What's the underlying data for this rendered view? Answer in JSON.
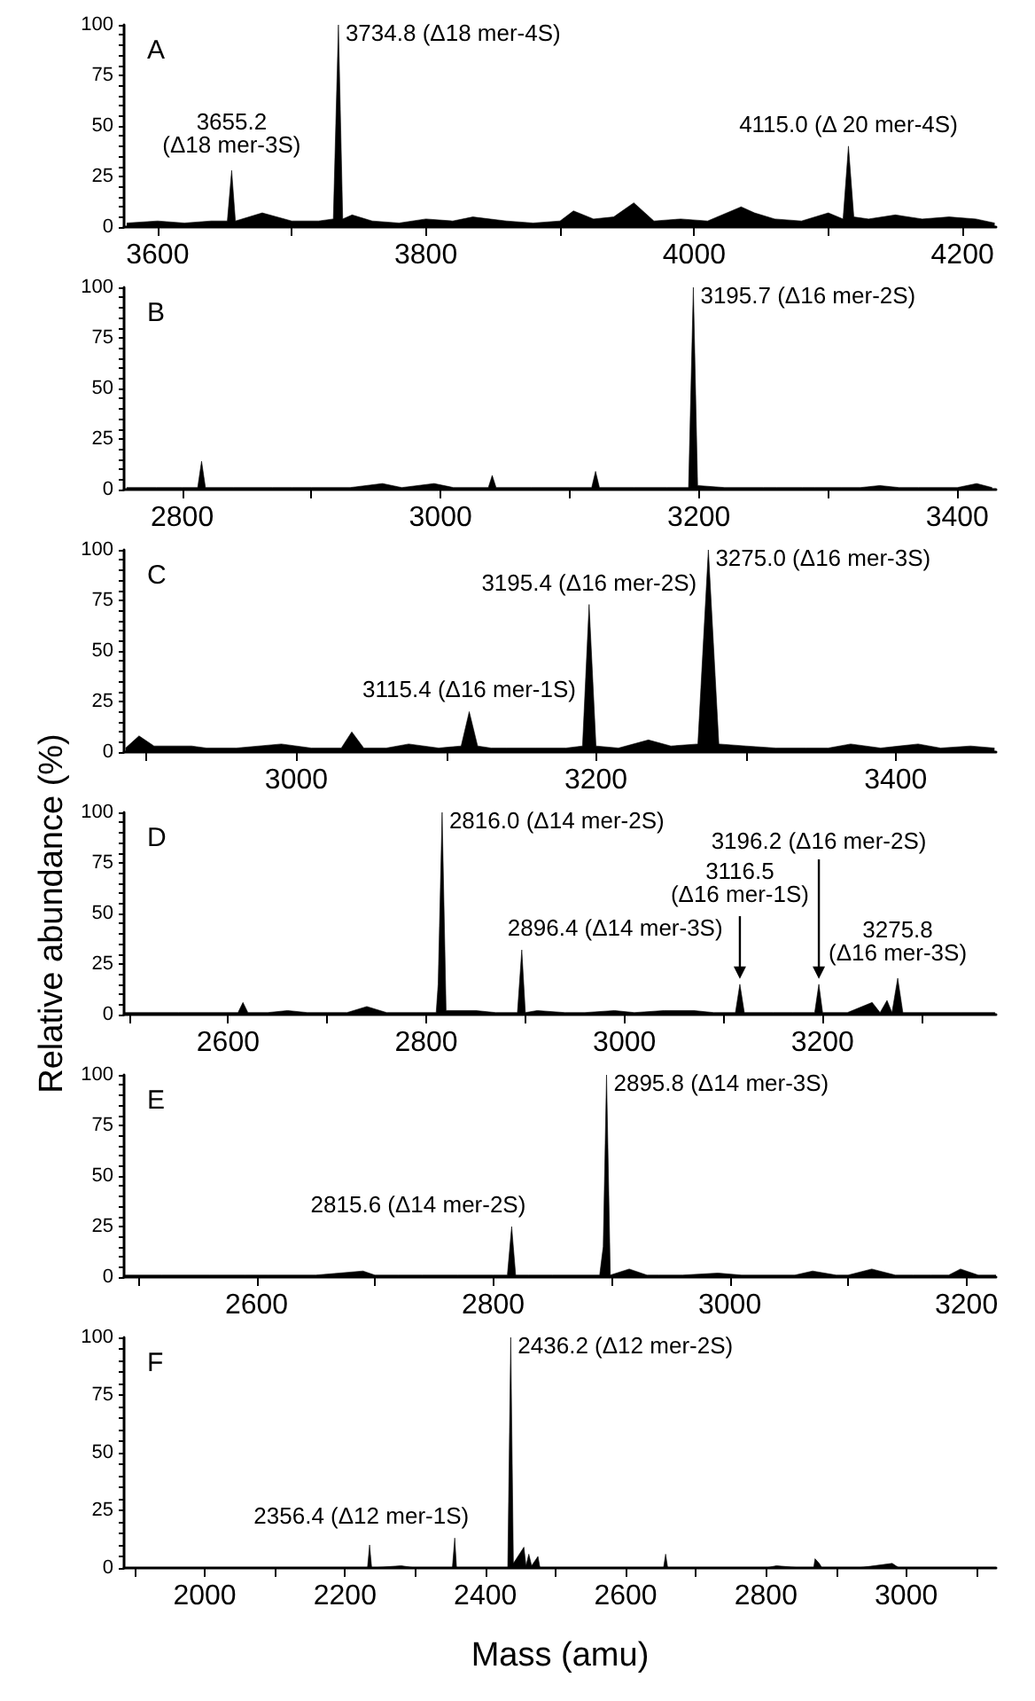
{
  "chart_data": [
    {
      "type": "area",
      "title": "A",
      "color": "#000000",
      "x": [
        3577,
        3600,
        3620,
        3640,
        3652,
        3655.2,
        3658,
        3678,
        3700,
        3720,
        3731,
        3734.8,
        3738,
        3745,
        3760,
        3780,
        3800,
        3820,
        3835,
        3860,
        3880,
        3900,
        3910,
        3925,
        3940,
        3955,
        3970,
        3990,
        4010,
        4035,
        4045,
        4060,
        4080,
        4100,
        4111,
        4115.0,
        4119,
        4130,
        4150,
        4170,
        4190,
        4210,
        4224
      ],
      "values": [
        2,
        3,
        2,
        3,
        3,
        28,
        3,
        7,
        3,
        3,
        4,
        100,
        4,
        6,
        3,
        2,
        4,
        3,
        5,
        3,
        2,
        3,
        8,
        4,
        5,
        12,
        3,
        4,
        3,
        10,
        7,
        4,
        3,
        7,
        4,
        40,
        5,
        4,
        6,
        4,
        5,
        4,
        2
      ],
      "xlim": [
        3575,
        4225
      ],
      "xticks": [
        3600,
        {
          "value": 3700,
          "label": null
        },
        3800,
        {
          "value": 3900,
          "label": null
        },
        4000,
        {
          "value": 4100,
          "label": null
        },
        4200
      ],
      "ylim": [
        0,
        100
      ],
      "yticks": [
        0,
        {
          "value": 5,
          "label": null
        },
        {
          "value": 10,
          "label": null
        },
        {
          "value": 15,
          "label": null
        },
        {
          "value": 20,
          "label": null
        },
        25,
        {
          "value": 30,
          "label": null
        },
        {
          "value": 35,
          "label": null
        },
        {
          "value": 40,
          "label": null
        },
        {
          "value": 45,
          "label": null
        },
        50,
        {
          "value": 55,
          "label": null
        },
        {
          "value": 60,
          "label": null
        },
        {
          "value": 65,
          "label": null
        },
        {
          "value": 70,
          "label": null
        },
        75,
        {
          "value": 80,
          "label": null
        },
        {
          "value": 85,
          "label": null
        },
        {
          "value": 90,
          "label": null
        },
        {
          "value": 95,
          "label": null
        },
        100
      ],
      "annotations": [
        {
          "text": "3734.8 (Δ18 mer-4S)",
          "x": 3734.8,
          "y": 100
        },
        {
          "text": "3655.2\n(Δ18 mer-3S)",
          "x": 3655.2,
          "y": 28
        },
        {
          "text": "4115.0 (Δ 20 mer-4S)",
          "x": 4115.0,
          "y": 40
        }
      ]
    },
    {
      "type": "area",
      "title": "B",
      "color": "#000000",
      "x": [
        2757,
        2780,
        2800,
        2812,
        2815,
        2818,
        2840,
        2870,
        2885,
        2900,
        2930,
        2955,
        2970,
        2995,
        3010,
        3037,
        3040,
        3043,
        3070,
        3100,
        3117,
        3120,
        3123,
        3150,
        3175,
        3192,
        3195.7,
        3199,
        3220,
        3250,
        3260,
        3280,
        3290,
        3310,
        3325,
        3340,
        3355,
        3370,
        3400,
        3415,
        3427
      ],
      "values": [
        1,
        1,
        1,
        1,
        14,
        1,
        1,
        1,
        1,
        1,
        1,
        3,
        1,
        3,
        1,
        1,
        7,
        1,
        1,
        1,
        1,
        9,
        1,
        1,
        1,
        1,
        100,
        2,
        1,
        1,
        1,
        1,
        1,
        1,
        1,
        2,
        1,
        1,
        1,
        3,
        1
      ],
      "xlim": [
        2755,
        3430
      ],
      "xticks": [
        2800,
        {
          "value": 2900,
          "label": null
        },
        3000,
        {
          "value": 3100,
          "label": null
        },
        3200,
        {
          "value": 3300,
          "label": null
        },
        3400
      ],
      "ylim": [
        0,
        100
      ],
      "yticks": [
        0,
        {
          "value": 5,
          "label": null
        },
        {
          "value": 10,
          "label": null
        },
        {
          "value": 15,
          "label": null
        },
        {
          "value": 20,
          "label": null
        },
        25,
        {
          "value": 30,
          "label": null
        },
        {
          "value": 35,
          "label": null
        },
        {
          "value": 40,
          "label": null
        },
        {
          "value": 45,
          "label": null
        },
        50,
        {
          "value": 55,
          "label": null
        },
        {
          "value": 60,
          "label": null
        },
        {
          "value": 65,
          "label": null
        },
        {
          "value": 70,
          "label": null
        },
        75,
        {
          "value": 80,
          "label": null
        },
        {
          "value": 85,
          "label": null
        },
        {
          "value": 90,
          "label": null
        },
        {
          "value": 95,
          "label": null
        },
        100
      ],
      "annotations": [
        {
          "text": "3195.7 (Δ16 mer-2S)",
          "x": 3195.7,
          "y": 100
        }
      ]
    },
    {
      "type": "area",
      "title": "C",
      "color": "#000000",
      "x": [
        2886,
        2895,
        2905,
        2920,
        2930,
        2940,
        2960,
        2990,
        3010,
        3030,
        3037,
        3045,
        3060,
        3075,
        3095,
        3110,
        3115.4,
        3121,
        3130,
        3140,
        3160,
        3180,
        3191,
        3195.4,
        3200,
        3215,
        3235,
        3250,
        3268,
        3275.0,
        3282,
        3300,
        3320,
        3340,
        3355,
        3370,
        3390,
        3415,
        3430,
        3450,
        3466
      ],
      "values": [
        2,
        8,
        3,
        3,
        3,
        2,
        2,
        4,
        2,
        2,
        10,
        2,
        2,
        4,
        2,
        3,
        20,
        3,
        2,
        2,
        2,
        2,
        3,
        73,
        3,
        2,
        6,
        3,
        4,
        100,
        4,
        3,
        2,
        2,
        2,
        4,
        2,
        4,
        2,
        3,
        2
      ],
      "xlim": [
        2885,
        3467
      ],
      "xticks": [
        {
          "value": 2900,
          "label": null
        },
        3000,
        {
          "value": 3100,
          "label": null
        },
        3200,
        {
          "value": 3300,
          "label": null
        },
        3400
      ],
      "ylim": [
        0,
        100
      ],
      "yticks": [
        0,
        {
          "value": 5,
          "label": null
        },
        {
          "value": 10,
          "label": null
        },
        {
          "value": 15,
          "label": null
        },
        {
          "value": 20,
          "label": null
        },
        25,
        {
          "value": 30,
          "label": null
        },
        {
          "value": 35,
          "label": null
        },
        {
          "value": 40,
          "label": null
        },
        {
          "value": 45,
          "label": null
        },
        50,
        {
          "value": 55,
          "label": null
        },
        {
          "value": 60,
          "label": null
        },
        {
          "value": 65,
          "label": null
        },
        {
          "value": 70,
          "label": null
        },
        75,
        {
          "value": 80,
          "label": null
        },
        {
          "value": 85,
          "label": null
        },
        {
          "value": 90,
          "label": null
        },
        {
          "value": 95,
          "label": null
        },
        100
      ],
      "annotations": [
        {
          "text": "3275.0 (Δ16 mer-3S)",
          "x": 3275.0,
          "y": 100
        },
        {
          "text": "3195.4 (Δ16 mer-2S)",
          "x": 3195.4,
          "y": 73
        },
        {
          "text": "3115.4 (Δ16 mer-1S)",
          "x": 3115.4,
          "y": 20
        }
      ]
    },
    {
      "type": "area",
      "title": "D",
      "ylabel": "Relative abundance (%)",
      "color": "#000000",
      "x": [
        2495,
        2520,
        2550,
        2580,
        2610,
        2615,
        2620,
        2640,
        2660,
        2680,
        2700,
        2720,
        2740,
        2760,
        2790,
        2810,
        2812,
        2816.0,
        2820,
        2850,
        2870,
        2892,
        2896.4,
        2900,
        2912,
        2940,
        2960,
        2990,
        3010,
        3040,
        3070,
        3090,
        3112,
        3116.5,
        3121,
        3150,
        3170,
        3192,
        3196.2,
        3200,
        3225,
        3250,
        3258,
        3265,
        3270,
        3275.8,
        3281,
        3300,
        3340,
        3374
      ],
      "values": [
        1,
        1,
        1,
        1,
        1,
        6,
        1,
        1,
        2,
        1,
        1,
        1,
        4,
        1,
        1,
        1,
        15,
        100,
        2,
        2,
        1,
        1,
        32,
        1,
        2,
        1,
        1,
        2,
        1,
        2,
        2,
        1,
        1,
        15,
        1,
        1,
        1,
        1,
        15,
        1,
        1,
        6,
        1,
        7,
        1,
        18,
        1,
        1,
        1,
        1
      ],
      "xlim": [
        2495,
        3375
      ],
      "xticks": [
        {
          "value": 2500,
          "label": null
        },
        2600,
        {
          "value": 2700,
          "label": null
        },
        2800,
        {
          "value": 2900,
          "label": null
        },
        3000,
        {
          "value": 3100,
          "label": null
        },
        3200,
        {
          "value": 3300,
          "label": null
        }
      ],
      "ylim": [
        0,
        100
      ],
      "yticks": [
        0,
        {
          "value": 5,
          "label": null
        },
        {
          "value": 10,
          "label": null
        },
        {
          "value": 15,
          "label": null
        },
        {
          "value": 20,
          "label": null
        },
        25,
        {
          "value": 30,
          "label": null
        },
        {
          "value": 35,
          "label": null
        },
        {
          "value": 40,
          "label": null
        },
        {
          "value": 45,
          "label": null
        },
        50,
        {
          "value": 55,
          "label": null
        },
        {
          "value": 60,
          "label": null
        },
        {
          "value": 65,
          "label": null
        },
        {
          "value": 70,
          "label": null
        },
        75,
        {
          "value": 80,
          "label": null
        },
        {
          "value": 85,
          "label": null
        },
        {
          "value": 90,
          "label": null
        },
        {
          "value": 95,
          "label": null
        },
        100
      ],
      "annotations": [
        {
          "text": "2816.0 (Δ14 mer-2S)",
          "x": 2816.0,
          "y": 100
        },
        {
          "text": "2896.4 (Δ14 mer-3S)",
          "x": 2896.4,
          "y": 32
        },
        {
          "text": "3116.5\n(Δ16 mer-1S)",
          "x": 3116.5,
          "y": 15
        },
        {
          "text": "3275.8\n(Δ16 mer-3S)",
          "x": 3275.8,
          "y": 18
        },
        {
          "text": "3196.2 (Δ16 mer-2S)",
          "x": 3196.2,
          "y": 15
        }
      ]
    },
    {
      "type": "area",
      "title": "E",
      "color": "#000000",
      "x": [
        2488,
        2520,
        2560,
        2590,
        2610,
        2650,
        2690,
        2700,
        2720,
        2740,
        2770,
        2800,
        2812,
        2815.6,
        2819,
        2830,
        2850,
        2870,
        2890,
        2893,
        2895.8,
        2899,
        2915,
        2930,
        2940,
        2960,
        2990,
        3010,
        3040,
        3055,
        3070,
        3090,
        3100,
        3120,
        3140,
        3155,
        3170,
        3185,
        3195,
        3210,
        3225
      ],
      "values": [
        1,
        1,
        1,
        1,
        1,
        1,
        3,
        1,
        1,
        1,
        1,
        1,
        1,
        25,
        1,
        1,
        1,
        1,
        1,
        15,
        100,
        1,
        4,
        1,
        1,
        1,
        2,
        1,
        1,
        1,
        3,
        1,
        1,
        4,
        1,
        1,
        1,
        1,
        4,
        1,
        1
      ],
      "xlim": [
        2488,
        3225
      ],
      "xticks": [
        {
          "value": 2500,
          "label": null
        },
        2600,
        {
          "value": 2700,
          "label": null
        },
        2800,
        {
          "value": 2900,
          "label": null
        },
        3000,
        {
          "value": 3100,
          "label": null
        },
        3200
      ],
      "ylim": [
        0,
        100
      ],
      "yticks": [
        0,
        {
          "value": 5,
          "label": null
        },
        {
          "value": 10,
          "label": null
        },
        {
          "value": 15,
          "label": null
        },
        {
          "value": 20,
          "label": null
        },
        25,
        {
          "value": 30,
          "label": null
        },
        {
          "value": 35,
          "label": null
        },
        {
          "value": 40,
          "label": null
        },
        {
          "value": 45,
          "label": null
        },
        50,
        {
          "value": 55,
          "label": null
        },
        {
          "value": 60,
          "label": null
        },
        {
          "value": 65,
          "label": null
        },
        {
          "value": 70,
          "label": null
        },
        75,
        {
          "value": 80,
          "label": null
        },
        {
          "value": 85,
          "label": null
        },
        {
          "value": 90,
          "label": null
        },
        {
          "value": 95,
          "label": null
        },
        100
      ],
      "annotations": [
        {
          "text": "2895.8 (Δ14 mer-3S)",
          "x": 2895.8,
          "y": 100
        },
        {
          "text": "2815.6 (Δ14 mer-2S)",
          "x": 2815.6,
          "y": 25
        }
      ]
    },
    {
      "type": "area",
      "title": "F",
      "xlabel": "Mass (amu)",
      "color": "#000000",
      "x": [
        1885,
        1950,
        2000,
        2050,
        2100,
        2150,
        2200,
        2232,
        2235,
        2238,
        2280,
        2300,
        2340,
        2353,
        2356.4,
        2359,
        2400,
        2432,
        2436.2,
        2440,
        2455,
        2458,
        2462,
        2466,
        2475,
        2478,
        2520,
        2560,
        2600,
        2640,
        2654,
        2657,
        2660,
        2700,
        2750,
        2800,
        2815,
        2850,
        2868,
        2870,
        2876,
        2880,
        2930,
        2980,
        2990,
        3050,
        3100,
        3128
      ],
      "values": [
        0,
        0,
        0,
        0,
        0,
        0,
        0,
        0,
        10,
        0,
        1,
        0,
        0,
        0,
        13,
        0,
        0,
        0,
        100,
        2,
        9,
        1,
        6,
        1,
        5,
        0,
        0,
        0,
        0,
        0,
        0,
        6,
        0,
        0,
        0,
        0,
        1,
        0,
        0,
        4,
        2,
        0,
        0,
        2,
        0,
        0,
        0,
        0
      ],
      "xlim": [
        1885,
        3128
      ],
      "xticks": [
        {
          "value": 1900,
          "label": null
        },
        2000,
        {
          "value": 2100,
          "label": null
        },
        2200,
        {
          "value": 2300,
          "label": null
        },
        2400,
        {
          "value": 2500,
          "label": null
        },
        2600,
        {
          "value": 2700,
          "label": null
        },
        2800,
        {
          "value": 2900,
          "label": null
        },
        3000,
        {
          "value": 3100,
          "label": null
        }
      ],
      "ylim": [
        0,
        100
      ],
      "yticks": [
        0,
        {
          "value": 5,
          "label": null
        },
        {
          "value": 10,
          "label": null
        },
        {
          "value": 15,
          "label": null
        },
        {
          "value": 20,
          "label": null
        },
        25,
        {
          "value": 30,
          "label": null
        },
        {
          "value": 35,
          "label": null
        },
        {
          "value": 40,
          "label": null
        },
        {
          "value": 45,
          "label": null
        },
        50,
        {
          "value": 55,
          "label": null
        },
        {
          "value": 60,
          "label": null
        },
        {
          "value": 65,
          "label": null
        },
        {
          "value": 70,
          "label": null
        },
        75,
        {
          "value": 80,
          "label": null
        },
        {
          "value": 85,
          "label": null
        },
        {
          "value": 90,
          "label": null
        },
        {
          "value": 95,
          "label": null
        },
        100
      ],
      "annotations": [
        {
          "text": "2436.2 (Δ12 mer-2S)",
          "x": 2436.2,
          "y": 100
        },
        {
          "text": "2356.4 (Δ12 mer-1S)",
          "x": 2356.4,
          "y": 13
        }
      ]
    }
  ]
}
